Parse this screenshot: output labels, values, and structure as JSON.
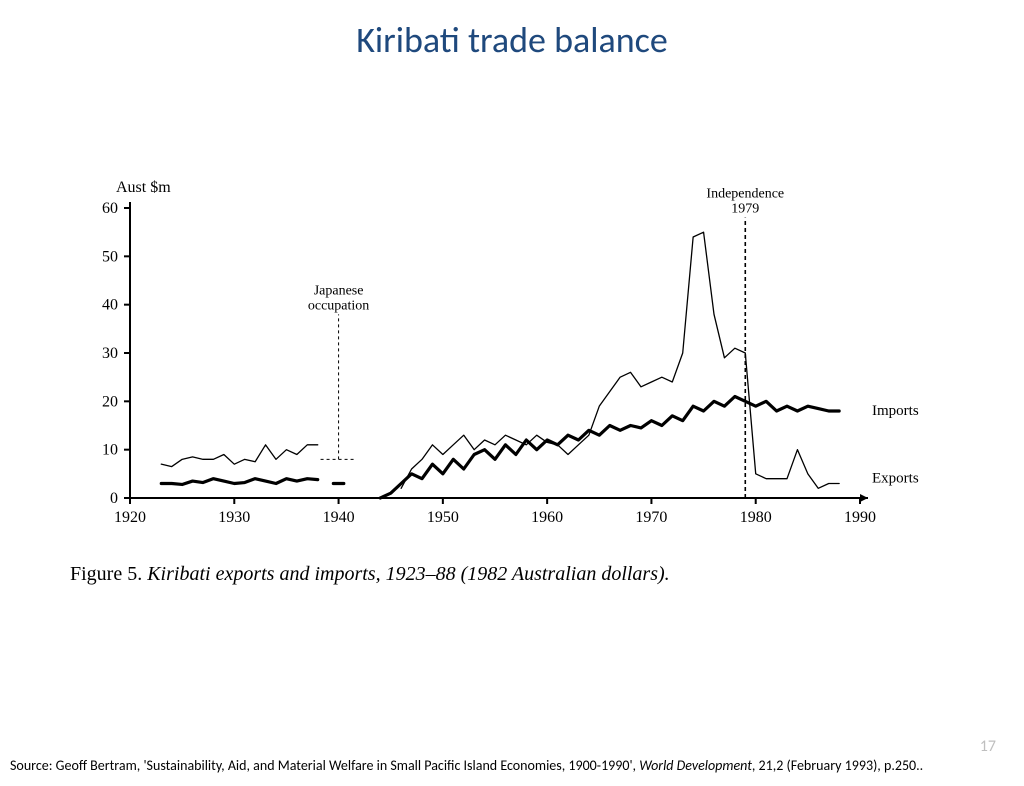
{
  "title": "Kiribati trade balance",
  "page_number": "17",
  "caption_prefix": "Figure 5. ",
  "caption_italic": "Kiribati exports and imports, 1923–88 (1982 Australian dollars).",
  "source_prefix": "Source: Geoff Bertram, 'Sustainability, Aid, and Material Welfare in Small Pacific Island Economies, 1900-1990', ",
  "source_italic": "World Development",
  "source_suffix": ", 21,2 (February 1993), p.250..",
  "chart": {
    "type": "line",
    "y_axis_label": "Aust $m",
    "xlim": [
      1920,
      1990
    ],
    "ylim": [
      0,
      60
    ],
    "xticks": [
      1920,
      1930,
      1940,
      1950,
      1960,
      1970,
      1980,
      1990
    ],
    "yticks": [
      0,
      10,
      20,
      30,
      40,
      50,
      60
    ],
    "axis_color": "#000000",
    "background_color": "#ffffff",
    "tick_fontsize": 16,
    "axis_label_fontsize": 16,
    "annotation_fontsize": 14,
    "series_label_fontsize": 15,
    "annotations": [
      {
        "label1": "Japanese",
        "label2": "occupation",
        "x": 1940,
        "line_from_y": 8,
        "line_to_y": 38,
        "dash": "3,3",
        "stroke_width": 1
      },
      {
        "label1": "Independence",
        "label2": "1979",
        "x": 1979,
        "line_from_y": 0,
        "line_to_y": 58,
        "dash": "4,3",
        "stroke_width": 1.6
      }
    ],
    "series": [
      {
        "name": "Exports",
        "label": "Exports",
        "stroke": "#000000",
        "stroke_width": 1.3,
        "segments": [
          [
            [
              1923,
              7
            ],
            [
              1924,
              6.5
            ],
            [
              1925,
              8
            ],
            [
              1926,
              8.5
            ],
            [
              1927,
              8
            ],
            [
              1928,
              8
            ],
            [
              1929,
              9
            ],
            [
              1930,
              7
            ],
            [
              1931,
              8
            ],
            [
              1932,
              7.5
            ],
            [
              1933,
              11
            ],
            [
              1934,
              8
            ],
            [
              1935,
              10
            ],
            [
              1936,
              9
            ],
            [
              1937,
              11
            ],
            [
              1938,
              11
            ]
          ],
          [
            [
              1946,
              2
            ],
            [
              1947,
              6
            ],
            [
              1948,
              8
            ],
            [
              1949,
              11
            ],
            [
              1950,
              9
            ],
            [
              1951,
              11
            ],
            [
              1952,
              13
            ],
            [
              1953,
              10
            ],
            [
              1954,
              12
            ],
            [
              1955,
              11
            ],
            [
              1956,
              13
            ],
            [
              1957,
              12
            ],
            [
              1958,
              11
            ],
            [
              1959,
              13
            ],
            [
              1960,
              11.5
            ],
            [
              1961,
              11
            ],
            [
              1962,
              9
            ],
            [
              1963,
              11
            ],
            [
              1964,
              13
            ],
            [
              1965,
              19
            ],
            [
              1966,
              22
            ],
            [
              1967,
              25
            ],
            [
              1968,
              26
            ],
            [
              1969,
              23
            ],
            [
              1970,
              24
            ],
            [
              1971,
              25
            ],
            [
              1972,
              24
            ],
            [
              1973,
              30
            ],
            [
              1974,
              54
            ],
            [
              1975,
              55
            ],
            [
              1976,
              38
            ],
            [
              1977,
              29
            ],
            [
              1978,
              31
            ],
            [
              1979,
              30
            ],
            [
              1980,
              5
            ],
            [
              1981,
              4
            ],
            [
              1982,
              4
            ],
            [
              1983,
              4
            ],
            [
              1984,
              10
            ],
            [
              1985,
              5
            ],
            [
              1986,
              2
            ],
            [
              1987,
              3
            ],
            [
              1988,
              3
            ]
          ]
        ]
      },
      {
        "name": "Imports",
        "label": "Imports",
        "stroke": "#000000",
        "stroke_width": 3.2,
        "segments": [
          [
            [
              1923,
              3
            ],
            [
              1924,
              3
            ],
            [
              1925,
              2.8
            ],
            [
              1926,
              3.5
            ],
            [
              1927,
              3.2
            ],
            [
              1928,
              4
            ],
            [
              1929,
              3.5
            ],
            [
              1930,
              3
            ],
            [
              1931,
              3.2
            ],
            [
              1932,
              4
            ],
            [
              1933,
              3.5
            ],
            [
              1934,
              3
            ],
            [
              1935,
              4
            ],
            [
              1936,
              3.5
            ],
            [
              1937,
              4
            ],
            [
              1938,
              3.8
            ]
          ],
          [
            [
              1939.5,
              3
            ],
            [
              1940.5,
              3
            ]
          ],
          [
            [
              1944,
              0
            ],
            [
              1945,
              1
            ],
            [
              1946,
              3
            ],
            [
              1947,
              5
            ],
            [
              1948,
              4
            ],
            [
              1949,
              7
            ],
            [
              1950,
              5
            ],
            [
              1951,
              8
            ],
            [
              1952,
              6
            ],
            [
              1953,
              9
            ],
            [
              1954,
              10
            ],
            [
              1955,
              8
            ],
            [
              1956,
              11
            ],
            [
              1957,
              9
            ],
            [
              1958,
              12
            ],
            [
              1959,
              10
            ],
            [
              1960,
              12
            ],
            [
              1961,
              11
            ],
            [
              1962,
              13
            ],
            [
              1963,
              12
            ],
            [
              1964,
              14
            ],
            [
              1965,
              13
            ],
            [
              1966,
              15
            ],
            [
              1967,
              14
            ],
            [
              1968,
              15
            ],
            [
              1969,
              14.5
            ],
            [
              1970,
              16
            ],
            [
              1971,
              15
            ],
            [
              1972,
              17
            ],
            [
              1973,
              16
            ],
            [
              1974,
              19
            ],
            [
              1975,
              18
            ],
            [
              1976,
              20
            ],
            [
              1977,
              19
            ],
            [
              1978,
              21
            ],
            [
              1979,
              20
            ],
            [
              1980,
              19
            ],
            [
              1981,
              20
            ],
            [
              1982,
              18
            ],
            [
              1983,
              19
            ],
            [
              1984,
              18
            ],
            [
              1985,
              19
            ],
            [
              1986,
              18.5
            ],
            [
              1987,
              18
            ],
            [
              1988,
              18
            ]
          ]
        ]
      }
    ]
  }
}
